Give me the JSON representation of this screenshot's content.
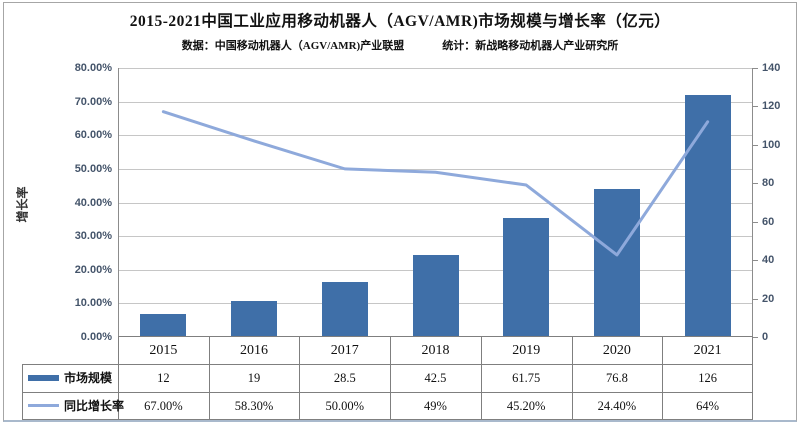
{
  "title": "2015-2021中国工业应用移动机器人（AGV/AMR)市场规模与增长率（亿元）",
  "subtitle": {
    "data_source": "数据：中国移动机器人（AGV/AMR)产业联盟",
    "statistics": "统计：新战略移动机器人产业研究所"
  },
  "chart_data": {
    "type": "bar",
    "subtype": "bar-line-combo",
    "title": "2015-2021中国工业应用移动机器人（AGV/AMR)市场规模与增长率（亿元）",
    "categories": [
      "2015",
      "2016",
      "2017",
      "2018",
      "2019",
      "2020",
      "2021"
    ],
    "series": [
      {
        "name": "市场规模",
        "type": "bar",
        "axis": "right",
        "values": [
          12,
          19,
          28.5,
          42.5,
          61.75,
          76.8,
          126
        ],
        "display_values": [
          "12",
          "19",
          "28.5",
          "42.5",
          "61.75",
          "76.8",
          "126"
        ],
        "color": "#3f6fa8"
      },
      {
        "name": "同比增长率",
        "type": "line",
        "axis": "left",
        "values": [
          67.0,
          58.3,
          50.0,
          49.0,
          45.2,
          24.4,
          64.0
        ],
        "display_values": [
          "67.00%",
          "58.30%",
          "50.00%",
          "49%",
          "45.20%",
          "24.40%",
          "64%"
        ],
        "color": "#8ea9db"
      }
    ],
    "left_axis": {
      "title": "增长率",
      "min": 0,
      "max": 80,
      "step": 10,
      "tick_labels": [
        "0.00%",
        "10.00%",
        "20.00%",
        "30.00%",
        "40.00%",
        "50.00%",
        "60.00%",
        "70.00%",
        "80.00%"
      ]
    },
    "right_axis": {
      "min": 0,
      "max": 140,
      "step": 20,
      "tick_labels": [
        "0",
        "20",
        "40",
        "60",
        "80",
        "100",
        "120",
        "140"
      ]
    },
    "grid": "horizontal",
    "legend_position": "table-left"
  },
  "colors": {
    "bar": "#3f6fa8",
    "line": "#8ea9db",
    "gridline": "#c6c6c6",
    "axis_text": "#44546a",
    "table_border": "#7f7f7f",
    "frame_border": "#a6a6a6"
  }
}
